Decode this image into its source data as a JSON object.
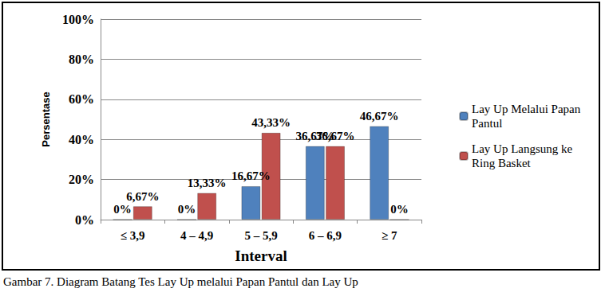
{
  "chart_data": {
    "type": "bar",
    "caption": "Gambar 7.  Diagram Batang Tes Lay Up melalui Papan Pantul dan Lay Up",
    "x_label": "Interval",
    "y_label": "Persentase",
    "categories": [
      "≤ 3,9",
      "4 – 4,9",
      "5 – 5,9",
      "6 – 6,9",
      "≥ 7"
    ],
    "series": [
      {
        "name": "Lay Up Melalui Papan Pantul",
        "color": "#4f81bd",
        "values": [
          0,
          0,
          16.67,
          36.67,
          46.67
        ],
        "value_labels": [
          "0%",
          "0%",
          "16,67%",
          "36,67%",
          "46,67%"
        ]
      },
      {
        "name": "Lay Up Langsung ke Ring Basket",
        "color": "#c0504d",
        "values": [
          6.67,
          13.33,
          43.33,
          36.67,
          0
        ],
        "value_labels": [
          "6,67%",
          "13,33%",
          "43,33%",
          "36,67%",
          "0%"
        ]
      }
    ],
    "ylim": [
      0,
      100
    ],
    "yticks": [
      {
        "value": 0,
        "label": "0%"
      },
      {
        "value": 20,
        "label": "20%"
      },
      {
        "value": 40,
        "label": "40%"
      },
      {
        "value": 60,
        "label": "60%"
      },
      {
        "value": 80,
        "label": "80%"
      },
      {
        "value": 100,
        "label": "100%"
      }
    ],
    "grid": true,
    "legend": "right",
    "data_labels": true
  }
}
